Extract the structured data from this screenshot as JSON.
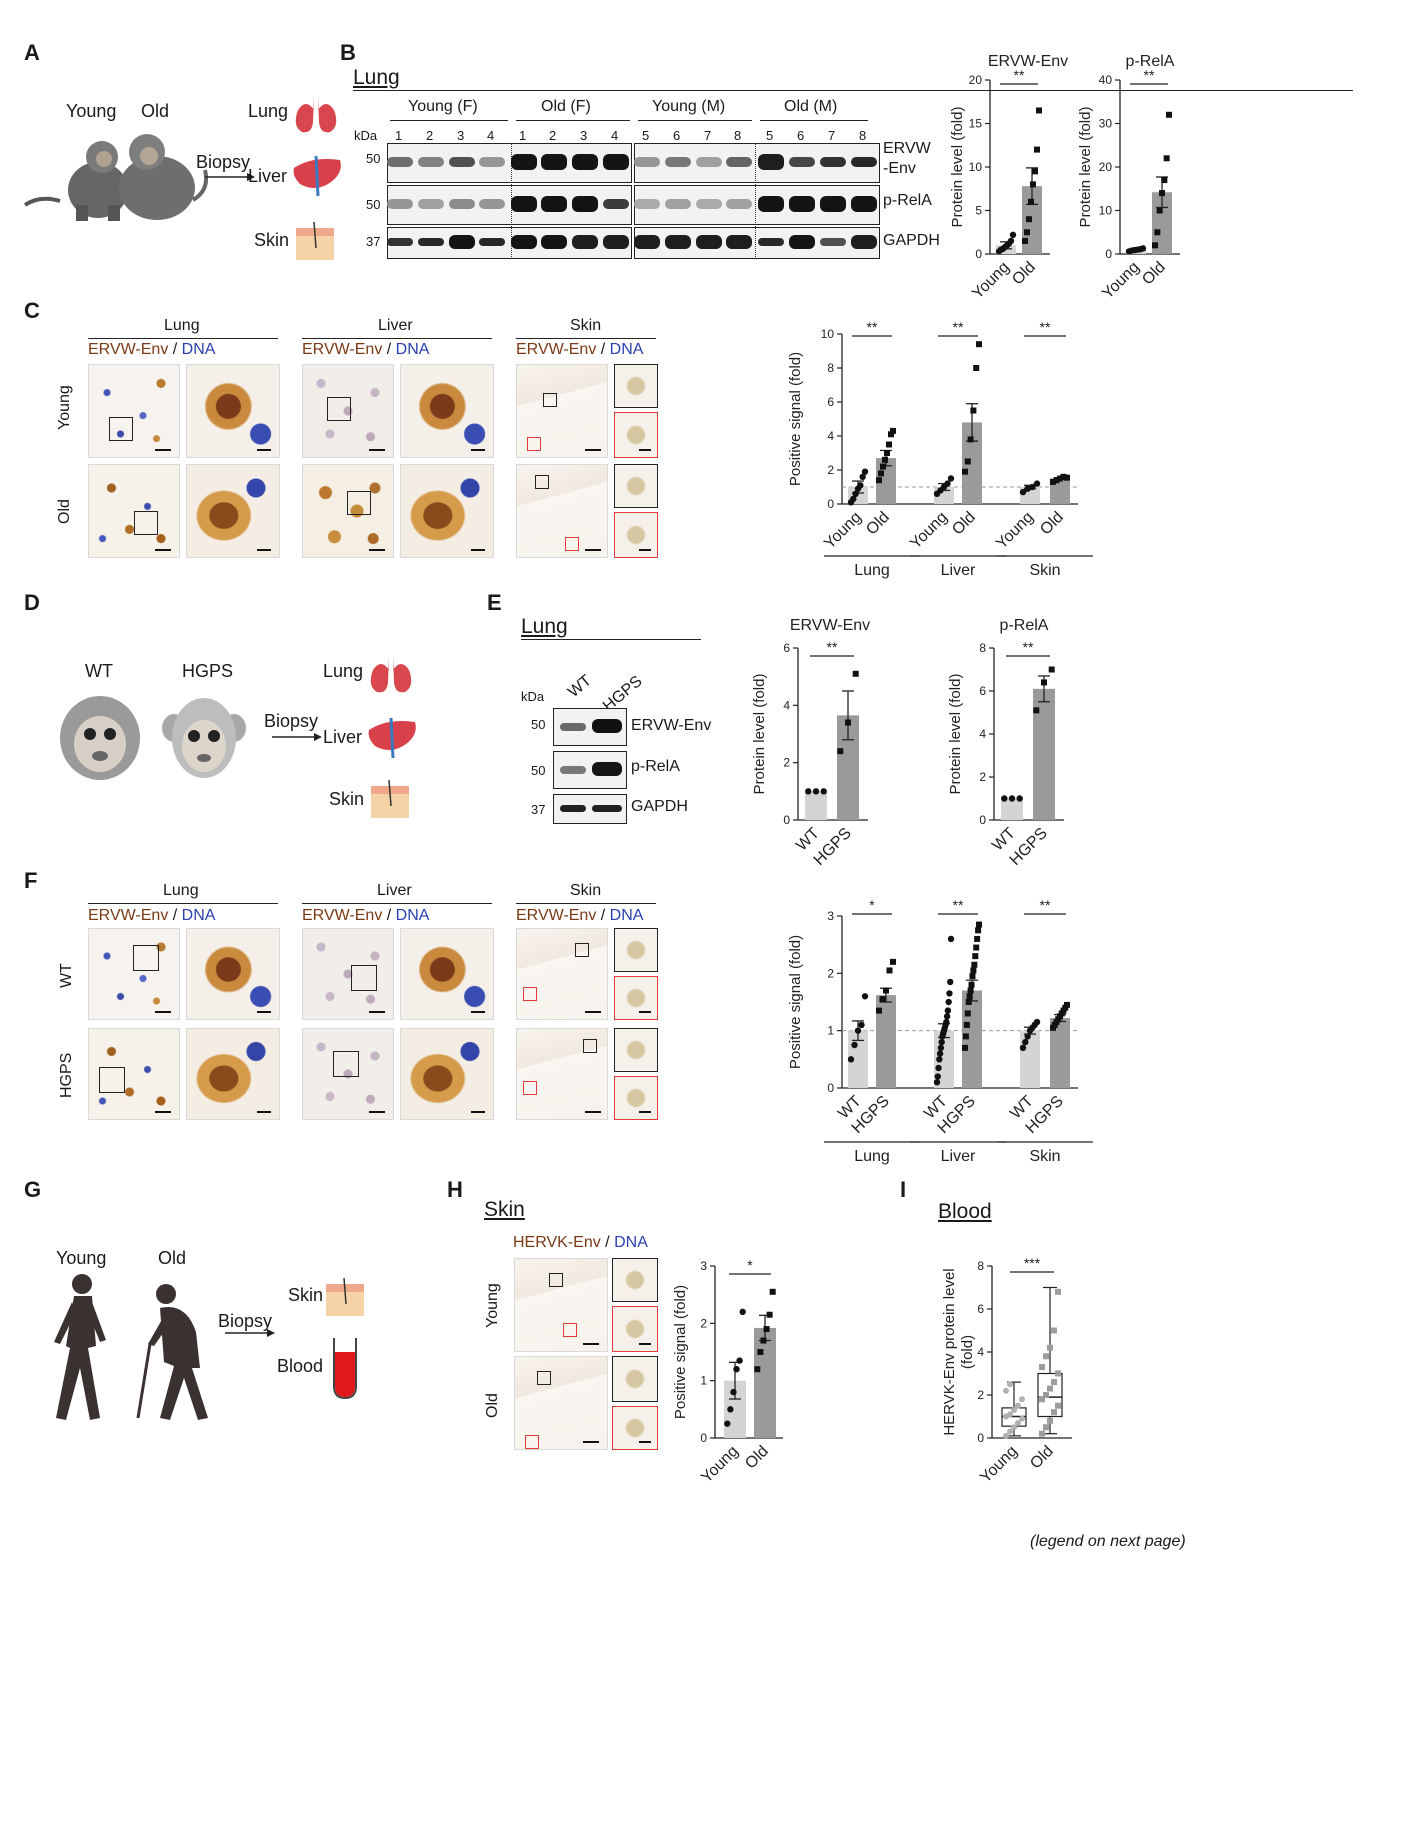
{
  "panels": {
    "A": "A",
    "B": "B",
    "C": "C",
    "D": "D",
    "E": "E",
    "F": "F",
    "G": "G",
    "H": "H",
    "I": "I"
  },
  "panelA": {
    "young": "Young",
    "old": "Old",
    "biopsy": "Biopsy",
    "lung": "Lung",
    "liver": "Liver",
    "skin": "Skin"
  },
  "panelB": {
    "section": "Lung",
    "kda": "kDa",
    "groups": [
      "Young (F)",
      "Old (F)",
      "Young (M)",
      "Old (M)"
    ],
    "lanes": [
      "1",
      "2",
      "3",
      "4",
      "1",
      "2",
      "3",
      "4",
      "5",
      "6",
      "7",
      "8",
      "5",
      "6",
      "7",
      "8"
    ],
    "markers": [
      "50",
      "50",
      "37"
    ],
    "bands": [
      "ERVW\n-Env",
      "p-RelA",
      "GAPDH"
    ],
    "band1a": "ERVW",
    "band1b": "-Env",
    "band2": "p-RelA",
    "band3": "GAPDH"
  },
  "panelC": {
    "lung": "Lung",
    "liver": "Liver",
    "skin": "Skin",
    "ervw": "ERVW-Env",
    "slash": " / ",
    "dna": "DNA",
    "young": "Young",
    "old": "Old"
  },
  "panelD": {
    "wt": "WT",
    "hgps": "HGPS",
    "biopsy": "Biopsy",
    "lung": "Lung",
    "liver": "Liver",
    "skin": "Skin"
  },
  "panelE": {
    "section": "Lung",
    "kda": "kDa",
    "lanes": [
      "WT",
      "HGPS"
    ],
    "markers": [
      "50",
      "50",
      "37"
    ],
    "bands": [
      "ERVW-Env",
      "p-RelA",
      "GAPDH"
    ]
  },
  "panelF": {
    "lung": "Lung",
    "liver": "Liver",
    "skin": "Skin",
    "ervw": "ERVW-Env",
    "slash": " / ",
    "dna": "DNA",
    "wt": "WT",
    "hgps": "HGPS"
  },
  "panelG": {
    "young": "Young",
    "old": "Old",
    "biopsy": "Biopsy",
    "skin": "Skin",
    "blood": "Blood"
  },
  "panelH": {
    "section": "Skin",
    "hervk": "HERVK-Env",
    "slash": " / ",
    "dna": "DNA",
    "young": "Young",
    "old": "Old"
  },
  "panelI": {
    "section": "Blood"
  },
  "footer": "(legend on next page)",
  "colors": {
    "young_bar": "#d4d4d4",
    "old_bar": "#9a9a9a",
    "brown": "#7a3a16",
    "blue": "#2a3fb0",
    "red_box": "#e23a3a"
  },
  "icons": [
    "monkey-young-icon",
    "monkey-old-icon",
    "lung-icon",
    "liver-icon",
    "skin-icon",
    "baby-monkey-wt-icon",
    "baby-monkey-hgps-icon",
    "human-young-icon",
    "human-old-icon",
    "blood-tube-icon",
    "arrow-icon"
  ],
  "chart_data": [
    {
      "id": "B1",
      "type": "bar",
      "title": "ERVW-Env",
      "ylabel": "Protein level (fold)",
      "ylim": [
        0,
        20
      ],
      "yticks": [
        0,
        5,
        10,
        15,
        20
      ],
      "categories": [
        "Young",
        "Old"
      ],
      "values": [
        1,
        7.8
      ],
      "errors": [
        0.4,
        2.1
      ],
      "points": [
        [
          0.3,
          0.5,
          0.6,
          0.8,
          1.0,
          1.2,
          1.5,
          2.2
        ],
        [
          1.5,
          2.5,
          4,
          6,
          8,
          9.5,
          12,
          16.5
        ]
      ],
      "significance": [
        {
          "pair": [
            0,
            1
          ],
          "label": "**"
        }
      ]
    },
    {
      "id": "B2",
      "type": "bar",
      "title": "p-RelA",
      "ylabel": "Protein level (fold)",
      "ylim": [
        0,
        40
      ],
      "yticks": [
        0,
        10,
        20,
        30,
        40
      ],
      "categories": [
        "Young",
        "Old"
      ],
      "values": [
        1,
        14.2
      ],
      "errors": [
        0.2,
        3.5
      ],
      "points": [
        [
          0.6,
          0.8,
          0.9,
          1.0,
          1.1,
          1.3
        ],
        [
          2,
          5,
          10,
          14,
          17,
          22,
          32
        ]
      ],
      "significance": [
        {
          "pair": [
            0,
            1
          ],
          "label": "**"
        }
      ]
    },
    {
      "id": "C",
      "type": "bar",
      "ylabel": "Positive signal (fold)",
      "ylim": [
        0,
        10
      ],
      "yticks": [
        0,
        2,
        4,
        6,
        8,
        10
      ],
      "groups": [
        "Lung",
        "Liver",
        "Skin"
      ],
      "categories": [
        "Young",
        "Old",
        "Young",
        "Old",
        "Young",
        "Old"
      ],
      "values": [
        1,
        2.7,
        1,
        4.8,
        1,
        1.5
      ],
      "errors": [
        0.35,
        0.45,
        0.2,
        1.1,
        0.1,
        0.05
      ],
      "points": [
        [
          0.1,
          0.3,
          0.6,
          0.9,
          1.1,
          1.6,
          1.9
        ],
        [
          1.4,
          1.8,
          2.2,
          2.6,
          3.0,
          3.5,
          4.1,
          4.3
        ],
        [
          0.6,
          0.8,
          1.0,
          1.2,
          1.5
        ],
        [
          1.9,
          2.5,
          3.8,
          5.5,
          8.0,
          9.4
        ],
        [
          0.7,
          0.9,
          1.0,
          1.2
        ],
        [
          1.3,
          1.4,
          1.5,
          1.6,
          1.55
        ]
      ],
      "reference_line": 1,
      "significance": [
        {
          "pair": [
            0,
            1
          ],
          "label": "**"
        },
        {
          "pair": [
            2,
            3
          ],
          "label": "**"
        },
        {
          "pair": [
            4,
            5
          ],
          "label": "**"
        }
      ]
    },
    {
      "id": "E1",
      "type": "bar",
      "title": "ERVW-Env",
      "ylabel": "Protein level (fold)",
      "ylim": [
        0,
        6
      ],
      "yticks": [
        0,
        2,
        4,
        6
      ],
      "categories": [
        "WT",
        "HGPS"
      ],
      "values": [
        1,
        3.65
      ],
      "errors": [
        0,
        0.85
      ],
      "points": [
        [
          1,
          1,
          1
        ],
        [
          2.4,
          3.4,
          5.1
        ]
      ],
      "significance": [
        {
          "pair": [
            0,
            1
          ],
          "label": "**"
        }
      ]
    },
    {
      "id": "E2",
      "type": "bar",
      "title": "p-RelA",
      "ylabel": "Protein level (fold)",
      "ylim": [
        0,
        8
      ],
      "yticks": [
        0,
        2,
        4,
        6,
        8
      ],
      "categories": [
        "WT",
        "HGPS"
      ],
      "values": [
        1,
        6.1
      ],
      "errors": [
        0,
        0.6
      ],
      "points": [
        [
          1,
          1,
          1
        ],
        [
          5.1,
          6.4,
          7.0
        ]
      ],
      "significance": [
        {
          "pair": [
            0,
            1
          ],
          "label": "**"
        }
      ]
    },
    {
      "id": "F",
      "type": "bar",
      "ylabel": "Positive signal (fold)",
      "ylim": [
        0,
        3
      ],
      "yticks": [
        0,
        1,
        2,
        3
      ],
      "groups": [
        "Lung",
        "Liver",
        "Skin"
      ],
      "categories": [
        "WT",
        "HGPS",
        "WT",
        "HGPS",
        "WT",
        "HGPS"
      ],
      "values": [
        1.0,
        1.62,
        1.0,
        1.7,
        1.0,
        1.22
      ],
      "errors": [
        0.17,
        0.12,
        0.12,
        0.18,
        0.06,
        0.06
      ],
      "points": [
        [
          0.5,
          0.75,
          1.0,
          1.1,
          1.6
        ],
        [
          1.35,
          1.55,
          1.7,
          2.05,
          2.2
        ],
        [
          0.1,
          0.2,
          0.35,
          0.5,
          0.6,
          0.7,
          0.8,
          0.9,
          0.95,
          1.0,
          1.05,
          1.1,
          1.15,
          1.25,
          1.35,
          1.5,
          1.65,
          1.85,
          2.6
        ],
        [
          0.7,
          0.9,
          1.1,
          1.3,
          1.5,
          1.6,
          1.7,
          1.8,
          1.95,
          2.05,
          2.15,
          2.3,
          2.45,
          2.6,
          2.75,
          2.85
        ],
        [
          0.7,
          0.8,
          0.9,
          1.0,
          1.05,
          1.1,
          1.15
        ],
        [
          1.05,
          1.1,
          1.15,
          1.2,
          1.25,
          1.3,
          1.35,
          1.4,
          1.45
        ]
      ],
      "reference_line": 1,
      "significance": [
        {
          "pair": [
            0,
            1
          ],
          "label": "*"
        },
        {
          "pair": [
            2,
            3
          ],
          "label": "**"
        },
        {
          "pair": [
            4,
            5
          ],
          "label": "**"
        }
      ]
    },
    {
      "id": "H",
      "type": "bar",
      "ylabel": "Positive signal (fold)",
      "ylim": [
        0,
        3
      ],
      "yticks": [
        0,
        1,
        2,
        3
      ],
      "categories": [
        "Young",
        "Old"
      ],
      "values": [
        1.0,
        1.92
      ],
      "errors": [
        0.32,
        0.22
      ],
      "points": [
        [
          0.25,
          0.5,
          0.8,
          1.2,
          1.35,
          2.2
        ],
        [
          1.2,
          1.5,
          1.7,
          1.9,
          2.15,
          2.55
        ]
      ],
      "significance": [
        {
          "pair": [
            0,
            1
          ],
          "label": "*"
        }
      ]
    },
    {
      "id": "I",
      "type": "box",
      "ylabel": "HERVK-Env protein level (fold)",
      "ylim": [
        0,
        8
      ],
      "yticks": [
        0,
        2,
        4,
        6,
        8
      ],
      "categories": [
        "Young",
        "Old"
      ],
      "box": [
        {
          "min": 0.1,
          "q1": 0.55,
          "median": 1.0,
          "q3": 1.4,
          "max": 2.6
        },
        {
          "min": 0.2,
          "q1": 1.0,
          "median": 1.9,
          "q3": 3.0,
          "max": 7.0
        }
      ],
      "points": [
        [
          0.1,
          0.3,
          0.5,
          0.7,
          0.9,
          1.0,
          1.1,
          1.3,
          1.5,
          1.8,
          2.2,
          2.5
        ],
        [
          0.2,
          0.5,
          0.8,
          1.2,
          1.5,
          1.8,
          2.0,
          2.3,
          2.6,
          3.0,
          3.3,
          3.8,
          4.2,
          5.0,
          6.8
        ]
      ],
      "significance": [
        {
          "pair": [
            0,
            1
          ],
          "label": "***"
        }
      ]
    }
  ]
}
